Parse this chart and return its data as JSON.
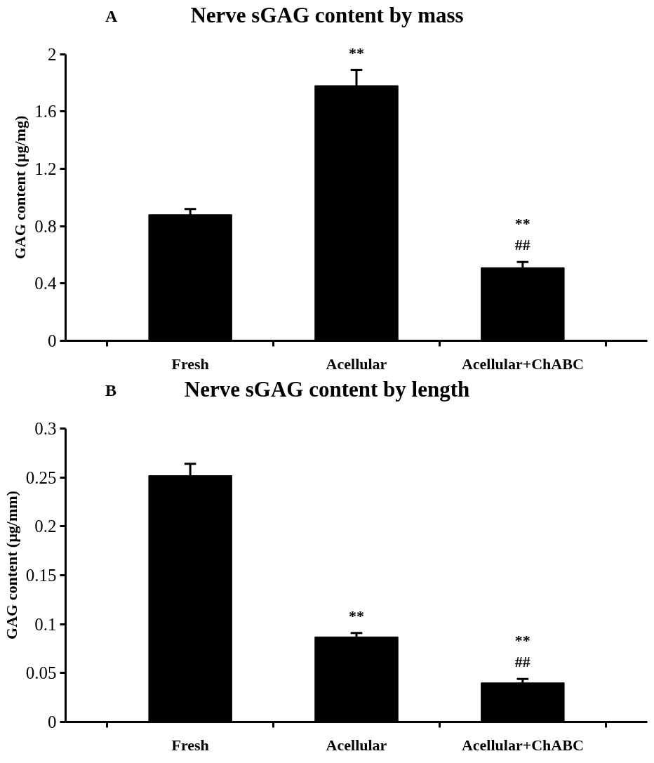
{
  "chart_data": [
    {
      "type": "bar",
      "title": "Nerve sGAG content by mass",
      "ylabel": "GAG content (µg/mg)",
      "categories": [
        "Fresh",
        "Acellular",
        "Acellular+ChABC"
      ],
      "values": [
        0.88,
        1.78,
        0.51
      ],
      "errors": [
        0.04,
        0.11,
        0.04
      ],
      "color": "#000000",
      "ylim": [
        0,
        2
      ],
      "yticks": [
        0,
        0.4,
        0.8,
        1.2,
        1.6,
        2
      ],
      "grid": false,
      "annotations": [
        "A",
        {
          "text": "**",
          "x": "Acellular",
          "y": 1.78
        },
        {
          "text": "##",
          "x": "Acellular+ChABC",
          "y": 0.51
        },
        {
          "text": "**",
          "x": "Acellular+ChABC",
          "y": 0.51
        }
      ]
    },
    {
      "type": "bar",
      "title": "Nerve sGAG content by length",
      "ylabel": "GAG content (µg/mm)",
      "categories": [
        "Fresh",
        "Acellular",
        "Acellular+ChABC"
      ],
      "values": [
        0.252,
        0.087,
        0.04
      ],
      "errors": [
        0.012,
        0.004,
        0.004
      ],
      "color": "#000000",
      "ylim": [
        0,
        0.3
      ],
      "yticks": [
        0,
        0.05,
        0.1,
        0.15,
        0.2,
        0.25,
        0.3
      ],
      "grid": false,
      "annotations": [
        "B",
        {
          "text": "**",
          "x": "Acellular",
          "y": 0.087
        },
        {
          "text": "##",
          "x": "Acellular+ChABC",
          "y": 0.04
        },
        {
          "text": "**",
          "x": "Acellular+ChABC",
          "y": 0.04
        }
      ]
    }
  ]
}
